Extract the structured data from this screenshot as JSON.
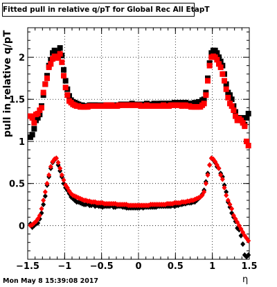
{
  "title": "Fitted pull in relative q/pT for Global Rec All EtapT",
  "ylabel": "pull in relative q/pT",
  "xlabel": "η",
  "timestamp": "Mon May  8 15:39:08 2017",
  "colors": {
    "series_black": "#000000",
    "series_red": "#ff0000",
    "grid": "#000000"
  },
  "chart_data": {
    "type": "scatter",
    "title": "Fitted pull in relative q/pT for Global Rec All EtapT",
    "xlabel": "η",
    "ylabel": "pull in relative q/pT",
    "xlim": [
      -1.5,
      1.5
    ],
    "ylim": [
      -0.4,
      2.35
    ],
    "grid": true,
    "x_ticks": [
      -1.5,
      -1,
      -0.5,
      0,
      0.5,
      1,
      1.5
    ],
    "x_tick_labels": [
      "−1.5",
      "−1",
      "−0.5",
      "0",
      "0.5",
      "1",
      "1.5"
    ],
    "y_ticks": [
      0,
      0.5,
      1,
      1.5,
      2
    ],
    "y_tick_labels": [
      "0",
      "0.5",
      "1",
      "1.5",
      "2"
    ],
    "series": [
      {
        "marker": "square",
        "color": "#000000",
        "x": [
          -1.4625,
          -1.4375,
          -1.4125,
          -1.3875,
          -1.3625,
          -1.3375,
          -1.3125,
          -1.2875,
          -1.2625,
          -1.2375,
          -1.2125,
          -1.1875,
          -1.1625,
          -1.1375,
          -1.1125,
          -1.0875,
          -1.0625,
          -1.0375,
          -1.0125,
          -0.9875,
          -0.9625,
          -0.9375,
          -0.9125,
          -0.8875,
          -0.8625,
          -0.8375,
          -0.8125,
          -0.7875,
          -0.7625,
          -0.7375,
          -0.7125,
          -0.6875,
          -0.6625,
          -0.6375,
          -0.6125,
          -0.5875,
          -0.5625,
          -0.5375,
          -0.5125,
          -0.4875,
          -0.4625,
          -0.4375,
          -0.4125,
          -0.3875,
          -0.3625,
          -0.3375,
          -0.3125,
          -0.2875,
          -0.2625,
          -0.2375,
          -0.2125,
          -0.1875,
          -0.1625,
          -0.1375,
          -0.1125,
          -0.0875,
          -0.0625,
          -0.0375,
          -0.0125,
          0.0125,
          0.0375,
          0.0625,
          0.0875,
          0.1125,
          0.1375,
          0.1625,
          0.1875,
          0.2125,
          0.2375,
          0.2625,
          0.2875,
          0.3125,
          0.3375,
          0.3625,
          0.3875,
          0.4125,
          0.4375,
          0.4625,
          0.4875,
          0.5125,
          0.5375,
          0.5625,
          0.5875,
          0.6125,
          0.6375,
          0.6625,
          0.6875,
          0.7125,
          0.7375,
          0.7625,
          0.7875,
          0.8125,
          0.8375,
          0.8625,
          0.8875,
          0.9125,
          0.9375,
          0.9625,
          0.9875,
          1.0125,
          1.0375,
          1.0625,
          1.0875,
          1.1125,
          1.1375,
          1.1625,
          1.1875,
          1.2125,
          1.2375,
          1.2625,
          1.2875,
          1.3125,
          1.3375,
          1.3625,
          1.3875,
          1.4125,
          1.4375,
          1.4625,
          1.4875
        ],
        "y": [
          1.05,
          1.08,
          1.15,
          1.25,
          1.28,
          1.32,
          1.42,
          1.55,
          1.68,
          1.78,
          1.9,
          1.97,
          2.05,
          2.08,
          2.04,
          2.06,
          2.11,
          2.02,
          1.85,
          1.72,
          1.62,
          1.54,
          1.49,
          1.47,
          1.46,
          1.45,
          1.44,
          1.43,
          1.43,
          1.42,
          1.42,
          1.42,
          1.43,
          1.43,
          1.42,
          1.43,
          1.43,
          1.42,
          1.42,
          1.43,
          1.42,
          1.43,
          1.43,
          1.42,
          1.43,
          1.43,
          1.42,
          1.43,
          1.43,
          1.44,
          1.44,
          1.44,
          1.44,
          1.44,
          1.44,
          1.45,
          1.44,
          1.44,
          1.44,
          1.44,
          1.44,
          1.44,
          1.44,
          1.45,
          1.44,
          1.44,
          1.44,
          1.45,
          1.44,
          1.44,
          1.45,
          1.45,
          1.45,
          1.45,
          1.45,
          1.45,
          1.45,
          1.45,
          1.46,
          1.46,
          1.46,
          1.46,
          1.45,
          1.46,
          1.46,
          1.45,
          1.45,
          1.45,
          1.45,
          1.46,
          1.45,
          1.47,
          1.45,
          1.49,
          1.5,
          1.58,
          1.75,
          1.93,
          2.05,
          2.08,
          2.08,
          2.05,
          2.0,
          1.95,
          1.9,
          1.8,
          1.68,
          1.58,
          1.55,
          1.5,
          1.42,
          1.35,
          1.28,
          1.25,
          1.28,
          1.24,
          1.2,
          1.28,
          1.33
        ],
        "name": ""
      },
      {
        "marker": "square",
        "color": "#ff0000",
        "x": [
          -1.4625,
          -1.4375,
          -1.4125,
          -1.3875,
          -1.3625,
          -1.3375,
          -1.3125,
          -1.2875,
          -1.2625,
          -1.2375,
          -1.2125,
          -1.1875,
          -1.1625,
          -1.1375,
          -1.1125,
          -1.0875,
          -1.0625,
          -1.0375,
          -1.0125,
          -0.9875,
          -0.9625,
          -0.9375,
          -0.9125,
          -0.8875,
          -0.8625,
          -0.8375,
          -0.8125,
          -0.7875,
          -0.7625,
          -0.7375,
          -0.7125,
          -0.6875,
          -0.6625,
          -0.6375,
          -0.6125,
          -0.5875,
          -0.5625,
          -0.5375,
          -0.5125,
          -0.4875,
          -0.4625,
          -0.4375,
          -0.4125,
          -0.3875,
          -0.3625,
          -0.3375,
          -0.3125,
          -0.2875,
          -0.2625,
          -0.2375,
          -0.2125,
          -0.1875,
          -0.1625,
          -0.1375,
          -0.1125,
          -0.0875,
          -0.0625,
          -0.0375,
          -0.0125,
          0.0125,
          0.0375,
          0.0625,
          0.0875,
          0.1125,
          0.1375,
          0.1625,
          0.1875,
          0.2125,
          0.2375,
          0.2625,
          0.2875,
          0.3125,
          0.3375,
          0.3625,
          0.3875,
          0.4125,
          0.4375,
          0.4625,
          0.4875,
          0.5125,
          0.5375,
          0.5625,
          0.5875,
          0.6125,
          0.6375,
          0.6625,
          0.6875,
          0.7125,
          0.7375,
          0.7625,
          0.7875,
          0.8125,
          0.8375,
          0.8625,
          0.8875,
          0.9125,
          0.9375,
          0.9625,
          0.9875,
          1.0125,
          1.0375,
          1.0625,
          1.0875,
          1.1125,
          1.1375,
          1.1625,
          1.1875,
          1.2125,
          1.2375,
          1.2625,
          1.2875,
          1.3125,
          1.3375,
          1.3625,
          1.3875,
          1.4125,
          1.4375,
          1.4625,
          1.4875
        ],
        "y": [
          1.3,
          1.28,
          1.22,
          1.32,
          1.33,
          1.37,
          1.4,
          1.58,
          1.68,
          1.75,
          1.88,
          1.92,
          1.98,
          2.01,
          1.99,
          2.0,
          2.04,
          1.94,
          1.78,
          1.64,
          1.55,
          1.48,
          1.46,
          1.44,
          1.43,
          1.42,
          1.42,
          1.41,
          1.41,
          1.41,
          1.41,
          1.41,
          1.42,
          1.42,
          1.42,
          1.42,
          1.42,
          1.42,
          1.42,
          1.42,
          1.42,
          1.43,
          1.43,
          1.42,
          1.43,
          1.42,
          1.42,
          1.42,
          1.43,
          1.43,
          1.43,
          1.43,
          1.43,
          1.43,
          1.43,
          1.43,
          1.43,
          1.43,
          1.43,
          1.43,
          1.42,
          1.42,
          1.42,
          1.43,
          1.42,
          1.42,
          1.42,
          1.42,
          1.42,
          1.42,
          1.42,
          1.42,
          1.43,
          1.42,
          1.42,
          1.42,
          1.43,
          1.43,
          1.43,
          1.43,
          1.43,
          1.43,
          1.42,
          1.43,
          1.43,
          1.42,
          1.42,
          1.41,
          1.41,
          1.41,
          1.41,
          1.41,
          1.41,
          1.43,
          1.45,
          1.55,
          1.72,
          1.9,
          2.0,
          2.01,
          2.0,
          1.97,
          1.92,
          1.88,
          1.8,
          1.72,
          1.62,
          1.52,
          1.45,
          1.42,
          1.37,
          1.3,
          1.25,
          1.27,
          1.25,
          1.22,
          1.18,
          1.0,
          0.95
        ],
        "name": ""
      },
      {
        "marker": "diamond",
        "color": "#000000",
        "x": [
          -1.4625,
          -1.4375,
          -1.4125,
          -1.3875,
          -1.3625,
          -1.3375,
          -1.3125,
          -1.2875,
          -1.2625,
          -1.2375,
          -1.2125,
          -1.1875,
          -1.1625,
          -1.1375,
          -1.1125,
          -1.0875,
          -1.0625,
          -1.0375,
          -1.0125,
          -0.9875,
          -0.9625,
          -0.9375,
          -0.9125,
          -0.8875,
          -0.8625,
          -0.8375,
          -0.8125,
          -0.7875,
          -0.7625,
          -0.7375,
          -0.7125,
          -0.6875,
          -0.6625,
          -0.6375,
          -0.6125,
          -0.5875,
          -0.5625,
          -0.5375,
          -0.5125,
          -0.4875,
          -0.4625,
          -0.4375,
          -0.4125,
          -0.3875,
          -0.3625,
          -0.3375,
          -0.3125,
          -0.2875,
          -0.2625,
          -0.2375,
          -0.2125,
          -0.1875,
          -0.1625,
          -0.1375,
          -0.1125,
          -0.0875,
          -0.0625,
          -0.0375,
          -0.0125,
          0.0125,
          0.0375,
          0.0625,
          0.0875,
          0.1125,
          0.1375,
          0.1625,
          0.1875,
          0.2125,
          0.2375,
          0.2625,
          0.2875,
          0.3125,
          0.3375,
          0.3625,
          0.3875,
          0.4125,
          0.4375,
          0.4625,
          0.4875,
          0.5125,
          0.5375,
          0.5625,
          0.5875,
          0.6125,
          0.6375,
          0.6625,
          0.6875,
          0.7125,
          0.7375,
          0.7625,
          0.7875,
          0.8125,
          0.8375,
          0.8625,
          0.8875,
          0.9125,
          0.9375,
          0.9625,
          0.9875,
          1.0125,
          1.0375,
          1.0625,
          1.0875,
          1.1125,
          1.1375,
          1.1625,
          1.1875,
          1.2125,
          1.2375,
          1.2625,
          1.2875,
          1.3125,
          1.3375,
          1.3625,
          1.3875,
          1.4125,
          1.4375,
          1.4625,
          1.4875
        ],
        "y": [
          0.02,
          -0.02,
          0.0,
          0.02,
          0.03,
          0.08,
          0.15,
          0.25,
          0.35,
          0.48,
          0.58,
          0.68,
          0.75,
          0.78,
          0.8,
          0.72,
          0.65,
          0.58,
          0.5,
          0.45,
          0.42,
          0.38,
          0.34,
          0.32,
          0.3,
          0.28,
          0.28,
          0.27,
          0.26,
          0.25,
          0.25,
          0.26,
          0.24,
          0.24,
          0.25,
          0.23,
          0.24,
          0.23,
          0.23,
          0.22,
          0.23,
          0.23,
          0.23,
          0.23,
          0.24,
          0.22,
          0.22,
          0.23,
          0.23,
          0.23,
          0.22,
          0.22,
          0.21,
          0.21,
          0.21,
          0.21,
          0.21,
          0.21,
          0.21,
          0.21,
          0.22,
          0.21,
          0.22,
          0.22,
          0.22,
          0.22,
          0.22,
          0.22,
          0.22,
          0.23,
          0.23,
          0.23,
          0.23,
          0.23,
          0.23,
          0.23,
          0.23,
          0.24,
          0.23,
          0.24,
          0.24,
          0.25,
          0.25,
          0.26,
          0.26,
          0.27,
          0.27,
          0.27,
          0.28,
          0.28,
          0.3,
          0.32,
          0.34,
          0.37,
          0.42,
          0.52,
          0.62,
          0.72,
          0.8,
          0.78,
          0.75,
          0.7,
          0.68,
          0.62,
          0.58,
          0.48,
          0.4,
          0.28,
          0.22,
          0.15,
          0.1,
          0.05,
          -0.03,
          -0.05,
          -0.12,
          -0.22,
          -0.35,
          -0.37,
          -0.35
        ],
        "name": ""
      },
      {
        "marker": "diamond",
        "color": "#ff0000",
        "x": [
          -1.4625,
          -1.4375,
          -1.4125,
          -1.3875,
          -1.3625,
          -1.3375,
          -1.3125,
          -1.2875,
          -1.2625,
          -1.2375,
          -1.2125,
          -1.1875,
          -1.1625,
          -1.1375,
          -1.1125,
          -1.0875,
          -1.0625,
          -1.0375,
          -1.0125,
          -0.9875,
          -0.9625,
          -0.9375,
          -0.9125,
          -0.8875,
          -0.8625,
          -0.8375,
          -0.8125,
          -0.7875,
          -0.7625,
          -0.7375,
          -0.7125,
          -0.6875,
          -0.6625,
          -0.6375,
          -0.6125,
          -0.5875,
          -0.5625,
          -0.5375,
          -0.5125,
          -0.4875,
          -0.4625,
          -0.4375,
          -0.4125,
          -0.3875,
          -0.3625,
          -0.3375,
          -0.3125,
          -0.2875,
          -0.2625,
          -0.2375,
          -0.2125,
          -0.1875,
          -0.1625,
          -0.1375,
          -0.1125,
          -0.0875,
          -0.0625,
          -0.0375,
          -0.0125,
          0.0125,
          0.0375,
          0.0625,
          0.0875,
          0.1125,
          0.1375,
          0.1625,
          0.1875,
          0.2125,
          0.2375,
          0.2625,
          0.2875,
          0.3125,
          0.3375,
          0.3625,
          0.3875,
          0.4125,
          0.4375,
          0.4625,
          0.4875,
          0.5125,
          0.5375,
          0.5625,
          0.5875,
          0.6125,
          0.6375,
          0.6625,
          0.6875,
          0.7125,
          0.7375,
          0.7625,
          0.7875,
          0.8125,
          0.8375,
          0.8625,
          0.8875,
          0.9125,
          0.9375,
          0.9625,
          0.9875,
          1.0125,
          1.0375,
          1.0625,
          1.0875,
          1.1125,
          1.1375,
          1.1625,
          1.1875,
          1.2125,
          1.2375,
          1.2625,
          1.2875,
          1.3125,
          1.3375,
          1.3625,
          1.3875,
          1.4125,
          1.4375,
          1.4625,
          1.4875
        ],
        "y": [
          0.0,
          0.01,
          0.03,
          0.05,
          0.08,
          0.12,
          0.2,
          0.3,
          0.4,
          0.5,
          0.6,
          0.7,
          0.76,
          0.79,
          0.8,
          0.75,
          0.68,
          0.6,
          0.54,
          0.48,
          0.45,
          0.41,
          0.38,
          0.36,
          0.35,
          0.34,
          0.33,
          0.32,
          0.31,
          0.3,
          0.3,
          0.29,
          0.29,
          0.28,
          0.28,
          0.28,
          0.27,
          0.27,
          0.27,
          0.27,
          0.26,
          0.26,
          0.26,
          0.26,
          0.26,
          0.26,
          0.26,
          0.25,
          0.25,
          0.25,
          0.25,
          0.25,
          0.25,
          0.24,
          0.24,
          0.24,
          0.24,
          0.24,
          0.24,
          0.24,
          0.24,
          0.24,
          0.24,
          0.24,
          0.24,
          0.25,
          0.25,
          0.25,
          0.25,
          0.25,
          0.25,
          0.25,
          0.25,
          0.25,
          0.26,
          0.26,
          0.26,
          0.26,
          0.27,
          0.27,
          0.27,
          0.27,
          0.28,
          0.28,
          0.28,
          0.29,
          0.29,
          0.3,
          0.3,
          0.31,
          0.32,
          0.33,
          0.34,
          0.36,
          0.4,
          0.5,
          0.6,
          0.72,
          0.8,
          0.79,
          0.76,
          0.72,
          0.68,
          0.6,
          0.55,
          0.45,
          0.36,
          0.3,
          0.25,
          0.2,
          0.12,
          0.08,
          0.04,
          0.0,
          -0.04,
          -0.08,
          -0.12,
          -0.15,
          -0.18
        ],
        "name": ""
      }
    ]
  }
}
